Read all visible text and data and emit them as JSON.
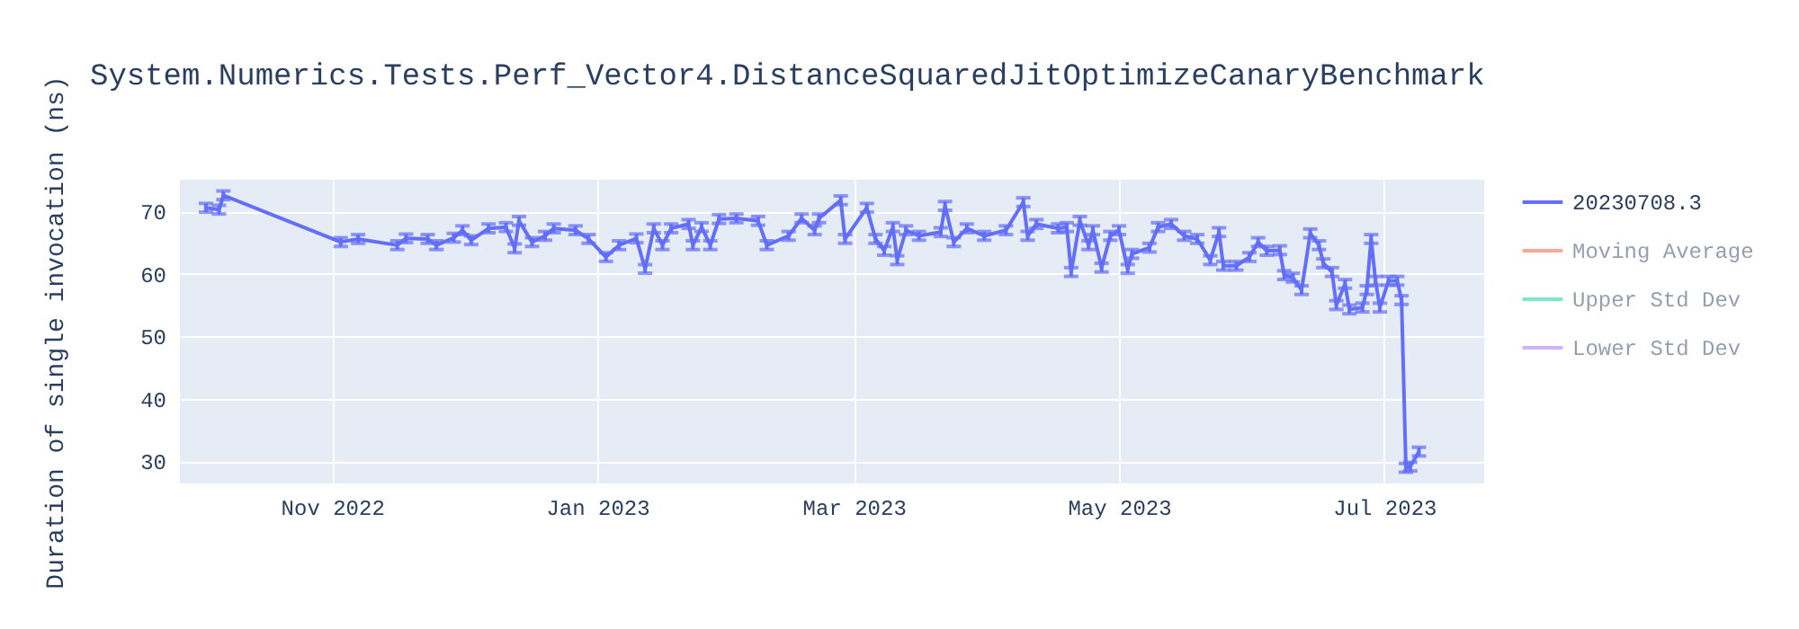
{
  "chart_data": {
    "type": "line",
    "title": "System.Numerics.Tests.Perf_Vector4.DistanceSquaredJitOptimizeCanaryBenchmark",
    "ylabel": "Duration of single invocation (ns)",
    "x": [
      "2022-10-03",
      "2022-10-06",
      "2022-10-07",
      "2022-11-03",
      "2022-11-07",
      "2022-11-16",
      "2022-11-18",
      "2022-11-23",
      "2022-11-25",
      "2022-11-29",
      "2022-12-01",
      "2022-12-03",
      "2022-12-07",
      "2022-12-11",
      "2022-12-13",
      "2022-12-14",
      "2022-12-17",
      "2022-12-20",
      "2022-12-22",
      "2022-12-27",
      "2022-12-30",
      "2023-01-03",
      "2023-01-06",
      "2023-01-10",
      "2023-01-12",
      "2023-01-14",
      "2023-01-16",
      "2023-01-18",
      "2023-01-22",
      "2023-01-23",
      "2023-01-25",
      "2023-01-27",
      "2023-01-29",
      "2023-02-02",
      "2023-02-07",
      "2023-02-09",
      "2023-02-14",
      "2023-02-17",
      "2023-02-20",
      "2023-02-21",
      "2023-02-26",
      "2023-02-27",
      "2023-03-04",
      "2023-03-06",
      "2023-03-08",
      "2023-03-10",
      "2023-03-11",
      "2023-03-13",
      "2023-03-16",
      "2023-03-21",
      "2023-03-22",
      "2023-03-24",
      "2023-03-27",
      "2023-03-31",
      "2023-04-05",
      "2023-04-09",
      "2023-04-10",
      "2023-04-12",
      "2023-04-17",
      "2023-04-19",
      "2023-04-20",
      "2023-04-22",
      "2023-04-24",
      "2023-04-25",
      "2023-04-27",
      "2023-04-29",
      "2023-05-01",
      "2023-05-03",
      "2023-05-04",
      "2023-05-08",
      "2023-05-10",
      "2023-05-13",
      "2023-05-16",
      "2023-05-19",
      "2023-05-22",
      "2023-05-24",
      "2023-05-25",
      "2023-05-28",
      "2023-05-31",
      "2023-06-02",
      "2023-06-04",
      "2023-06-07",
      "2023-06-08",
      "2023-06-10",
      "2023-06-12",
      "2023-06-14",
      "2023-06-16",
      "2023-06-17",
      "2023-06-19",
      "2023-06-20",
      "2023-06-22",
      "2023-06-23",
      "2023-06-26",
      "2023-06-27",
      "2023-06-28",
      "2023-06-29",
      "2023-06-30",
      "2023-07-02",
      "2023-07-04",
      "2023-07-05",
      "2023-07-06",
      "2023-07-07",
      "2023-07-09"
    ],
    "series": [
      {
        "name": "20230708.3",
        "color": "#636efa",
        "values": [
          70.6,
          70.3,
          72.6,
          65.1,
          65.6,
          64.6,
          65.7,
          65.6,
          64.6,
          65.8,
          67.0,
          65.4,
          67.3,
          67.5,
          64.1,
          68.5,
          65.1,
          66.1,
          67.3,
          67.0,
          65.6,
          62.7,
          64.6,
          65.7,
          60.8,
          67.3,
          64.6,
          67.3,
          68.0,
          64.6,
          67.5,
          64.6,
          68.8,
          68.9,
          68.5,
          64.6,
          66.1,
          68.9,
          67.0,
          68.9,
          71.8,
          65.6,
          70.6,
          65.6,
          63.7,
          67.5,
          62.2,
          67.0,
          66.1,
          66.7,
          70.9,
          65.1,
          67.3,
          66.1,
          67.0,
          71.5,
          66.1,
          68.0,
          67.3,
          67.5,
          60.3,
          68.5,
          64.6,
          67.0,
          61.0,
          66.1,
          67.0,
          60.8,
          63.2,
          64.2,
          67.5,
          68.0,
          66.1,
          65.6,
          62.2,
          66.7,
          61.3,
          61.3,
          62.7,
          65.1,
          63.7,
          63.8,
          59.8,
          59.4,
          57.4,
          66.5,
          64.6,
          61.7,
          60.3,
          55.0,
          58.4,
          54.3,
          54.6,
          57.4,
          65.6,
          58.9,
          54.6,
          58.9,
          58.9,
          55.8,
          28.9,
          29.1,
          31.5
        ],
        "errors": [
          0.7,
          0.7,
          0.7,
          0.7,
          0.7,
          0.7,
          0.7,
          0.7,
          0.7,
          0.7,
          0.7,
          0.7,
          0.7,
          0.7,
          0.7,
          0.7,
          0.7,
          0.7,
          0.7,
          0.7,
          0.7,
          0.7,
          0.7,
          0.7,
          0.7,
          0.7,
          0.7,
          0.7,
          0.7,
          0.7,
          0.7,
          0.7,
          0.7,
          0.7,
          0.7,
          0.7,
          0.7,
          0.7,
          0.7,
          0.7,
          0.7,
          0.7,
          0.7,
          0.7,
          0.7,
          0.7,
          0.7,
          0.7,
          0.7,
          0.7,
          0.7,
          0.7,
          0.7,
          0.7,
          0.7,
          0.7,
          0.7,
          0.7,
          0.7,
          0.7,
          0.7,
          0.7,
          0.7,
          0.7,
          0.7,
          0.7,
          0.7,
          0.7,
          0.7,
          0.7,
          0.7,
          0.7,
          0.7,
          0.7,
          0.7,
          0.7,
          0.7,
          0.7,
          0.7,
          0.7,
          0.7,
          0.7,
          0.7,
          0.7,
          0.7,
          0.7,
          0.7,
          0.7,
          0.7,
          0.7,
          0.7,
          0.7,
          0.7,
          0.7,
          0.7,
          0.7,
          0.7,
          0.7,
          0.7,
          0.7,
          0.7,
          0.7,
          0.7
        ]
      },
      {
        "name": "Moving Average",
        "color": "#ef553b",
        "values": [
          null,
          null,
          null,
          null,
          null,
          null,
          null,
          null,
          null,
          null,
          null,
          null,
          null,
          null,
          null,
          null,
          null,
          null,
          null,
          null,
          null,
          null,
          null,
          null,
          null,
          null,
          null,
          null,
          null,
          null,
          null,
          null,
          null,
          null,
          null,
          null,
          null,
          null,
          null,
          null,
          null,
          null,
          null,
          null,
          null,
          null,
          null,
          null,
          null,
          null,
          null,
          null,
          null,
          null,
          null,
          null,
          null,
          null,
          null,
          null,
          null,
          null,
          null,
          null,
          null,
          null,
          null,
          null,
          null,
          null,
          null,
          null,
          null,
          null,
          null,
          null,
          null,
          null,
          null,
          null,
          null,
          null,
          null,
          null,
          null,
          null,
          null,
          null,
          null,
          null,
          null,
          null,
          null,
          null,
          null,
          null,
          null,
          null,
          null,
          null,
          null,
          null,
          null
        ]
      },
      {
        "name": "Upper Std Dev",
        "color": "#00cc96",
        "values": [
          null,
          null,
          null,
          null,
          null,
          null,
          null,
          null,
          null,
          null,
          null,
          null,
          null,
          null,
          null,
          null,
          null,
          null,
          null,
          null,
          null,
          null,
          null,
          null,
          null,
          null,
          null,
          null,
          null,
          null,
          null,
          null,
          null,
          null,
          null,
          null,
          null,
          null,
          null,
          null,
          null,
          null,
          null,
          null,
          null,
          null,
          null,
          null,
          null,
          null,
          null,
          null,
          null,
          null,
          null,
          null,
          null,
          null,
          null,
          null,
          null,
          null,
          null,
          null,
          null,
          null,
          null,
          null,
          null,
          null,
          null,
          null,
          null,
          null,
          null,
          null,
          null,
          null,
          null,
          null,
          null,
          null,
          null,
          null,
          null,
          null,
          null,
          null,
          null,
          null,
          null,
          null,
          null,
          null,
          null,
          null,
          null,
          null,
          null,
          null,
          null,
          null,
          null
        ]
      },
      {
        "name": "Lower Std Dev",
        "color": "#ab63fa",
        "values": [
          null,
          null,
          null,
          null,
          null,
          null,
          null,
          null,
          null,
          null,
          null,
          null,
          null,
          null,
          null,
          null,
          null,
          null,
          null,
          null,
          null,
          null,
          null,
          null,
          null,
          null,
          null,
          null,
          null,
          null,
          null,
          null,
          null,
          null,
          null,
          null,
          null,
          null,
          null,
          null,
          null,
          null,
          null,
          null,
          null,
          null,
          null,
          null,
          null,
          null,
          null,
          null,
          null,
          null,
          null,
          null,
          null,
          null,
          null,
          null,
          null,
          null,
          null,
          null,
          null,
          null,
          null,
          null,
          null,
          null,
          null,
          null,
          null,
          null,
          null,
          null,
          null,
          null,
          null,
          null,
          null,
          null,
          null,
          null,
          null,
          null,
          null,
          null,
          null,
          null,
          null,
          null,
          null,
          null,
          null,
          null,
          null,
          null,
          null,
          null,
          null,
          null,
          null
        ]
      }
    ],
    "xlim": [
      "2022-09-27",
      "2023-07-24"
    ],
    "xticks": [
      {
        "value": "2022-11-01",
        "label": "Nov 2022"
      },
      {
        "value": "2023-01-01",
        "label": "Jan 2023"
      },
      {
        "value": "2023-03-01",
        "label": "Mar 2023"
      },
      {
        "value": "2023-05-01",
        "label": "May 2023"
      },
      {
        "value": "2023-07-01",
        "label": "Jul 2023"
      }
    ],
    "ylim": [
      26.4,
      75.1
    ],
    "yticks": [
      30,
      40,
      50,
      60,
      70
    ],
    "grid": true,
    "legend": "top right",
    "marker": "none",
    "line_style": "solid"
  }
}
